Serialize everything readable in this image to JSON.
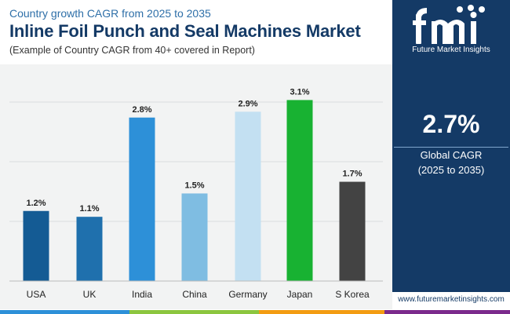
{
  "header": {
    "top_line": "Country growth CAGR from 2025 to 2035",
    "title": "Inline Foil Punch and Seal Machines Market",
    "subtitle": "(Example of Country CAGR from 40+ covered in Report)"
  },
  "chart_data": {
    "type": "bar",
    "title": "Inline Foil Punch and Seal Machines Market",
    "categories": [
      "USA",
      "UK",
      "India",
      "China",
      "Germany",
      "Japan",
      "S Korea"
    ],
    "values": [
      1.2,
      1.1,
      2.8,
      1.5,
      2.9,
      3.1,
      1.7
    ],
    "labels": [
      "1.2%",
      "1.1%",
      "2.8%",
      "1.5%",
      "2.9%",
      "3.1%",
      "1.7%"
    ],
    "colors": [
      "#145b94",
      "#1f70ad",
      "#2d90d8",
      "#7fbde2",
      "#c3e0f2",
      "#18b232",
      "#434343"
    ],
    "xlabel": "",
    "ylabel": "",
    "ylim": [
      0,
      3.2
    ],
    "grid": true,
    "legend": "none"
  },
  "panel": {
    "logo_name": "Future Market Insights",
    "stat_value": "2.7%",
    "stat_label_line1": "Global CAGR",
    "stat_label_line2": "(2025 to 2035)"
  },
  "footer": {
    "url": "www.futuremarketinsights.com"
  },
  "style": {
    "navy": "#143a66",
    "strip_colors": [
      "#2d90d8",
      "#8cc63f",
      "#f39c12",
      "#7b2a8c"
    ]
  }
}
